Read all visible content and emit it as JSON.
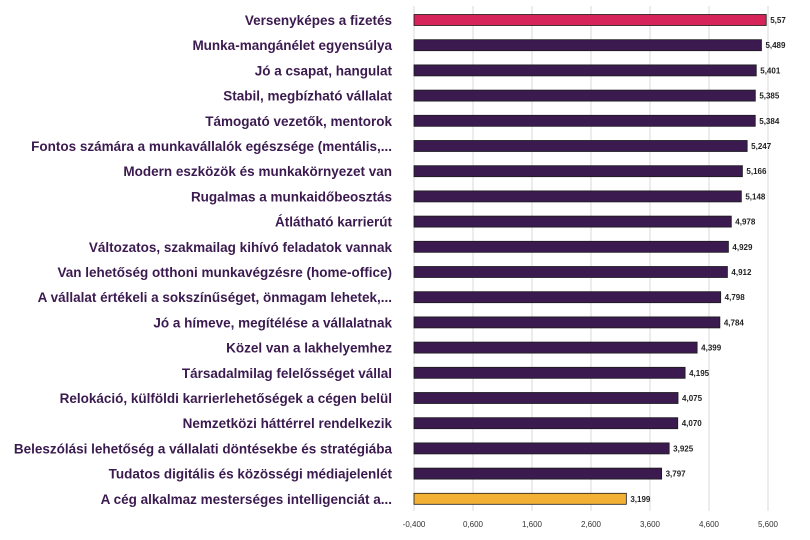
{
  "chart_data": {
    "type": "bar",
    "orientation": "horizontal",
    "categories": [
      "Versenyképes a fizetés",
      "Munka-mangánélet egyensúlya",
      "Jó a csapat, hangulat",
      "Stabil, megbízható vállalat",
      "Támogató vezetők, mentorok",
      "Fontos számára a munkavállalók egészsége (mentális,...",
      "Modern eszközök és munkakörnyezet van",
      "Rugalmas a munkaidőbeosztás",
      "Átlátható karrierút",
      "Változatos, szakmailag kihívó feladatok vannak",
      "Van lehetőség otthoni munkavégzésre (home-office)",
      "A vállalat értékeli a sokszínűséget, önmagam lehetek,...",
      "Jó a hímeve, megítélése a vállalatnak",
      "Közel van a lakhelyemhez",
      "Társadalmilag felelősséget vállal",
      "Relokáció, külföldi karrierlehetőségek a cégen belül",
      "Nemzetközi háttérrel rendelkezik",
      "Beleszólási lehetőség a vállalati döntésekbe és stratégiába",
      "Tudatos digitális és közösségi médiajelenlét",
      "A cég alkalmaz mesterséges intelligenciát a..."
    ],
    "values": [
      5.57,
      5.489,
      5.401,
      5.385,
      5.384,
      5.247,
      5.166,
      5.148,
      4.978,
      4.929,
      4.912,
      4.798,
      4.784,
      4.399,
      4.195,
      4.075,
      4.07,
      3.925,
      3.797,
      3.199
    ],
    "value_labels": [
      "5,57",
      "5,489",
      "5,401",
      "5,385",
      "5,384",
      "5,247",
      "5,166",
      "5,148",
      "4,978",
      "4,929",
      "4,912",
      "4,798",
      "4,784",
      "4,399",
      "4,195",
      "4,075",
      "4,070",
      "3,925",
      "3,797",
      "3,199"
    ],
    "bar_colors": [
      "#d6245a",
      "#3b1a4f",
      "#3b1a4f",
      "#3b1a4f",
      "#3b1a4f",
      "#3b1a4f",
      "#3b1a4f",
      "#3b1a4f",
      "#3b1a4f",
      "#3b1a4f",
      "#3b1a4f",
      "#3b1a4f",
      "#3b1a4f",
      "#3b1a4f",
      "#3b1a4f",
      "#3b1a4f",
      "#3b1a4f",
      "#3b1a4f",
      "#3b1a4f",
      "#f2b134"
    ],
    "xticks": [
      -0.4,
      0.6,
      1.6,
      2.6,
      3.6,
      4.6,
      5.6
    ],
    "xtick_labels": [
      "-0,400",
      "0,600",
      "1,600",
      "2,600",
      "3,600",
      "4,600",
      "5,600"
    ],
    "xlim": [
      -0.4,
      5.6
    ],
    "grid": true,
    "legend": "none",
    "title": ""
  }
}
